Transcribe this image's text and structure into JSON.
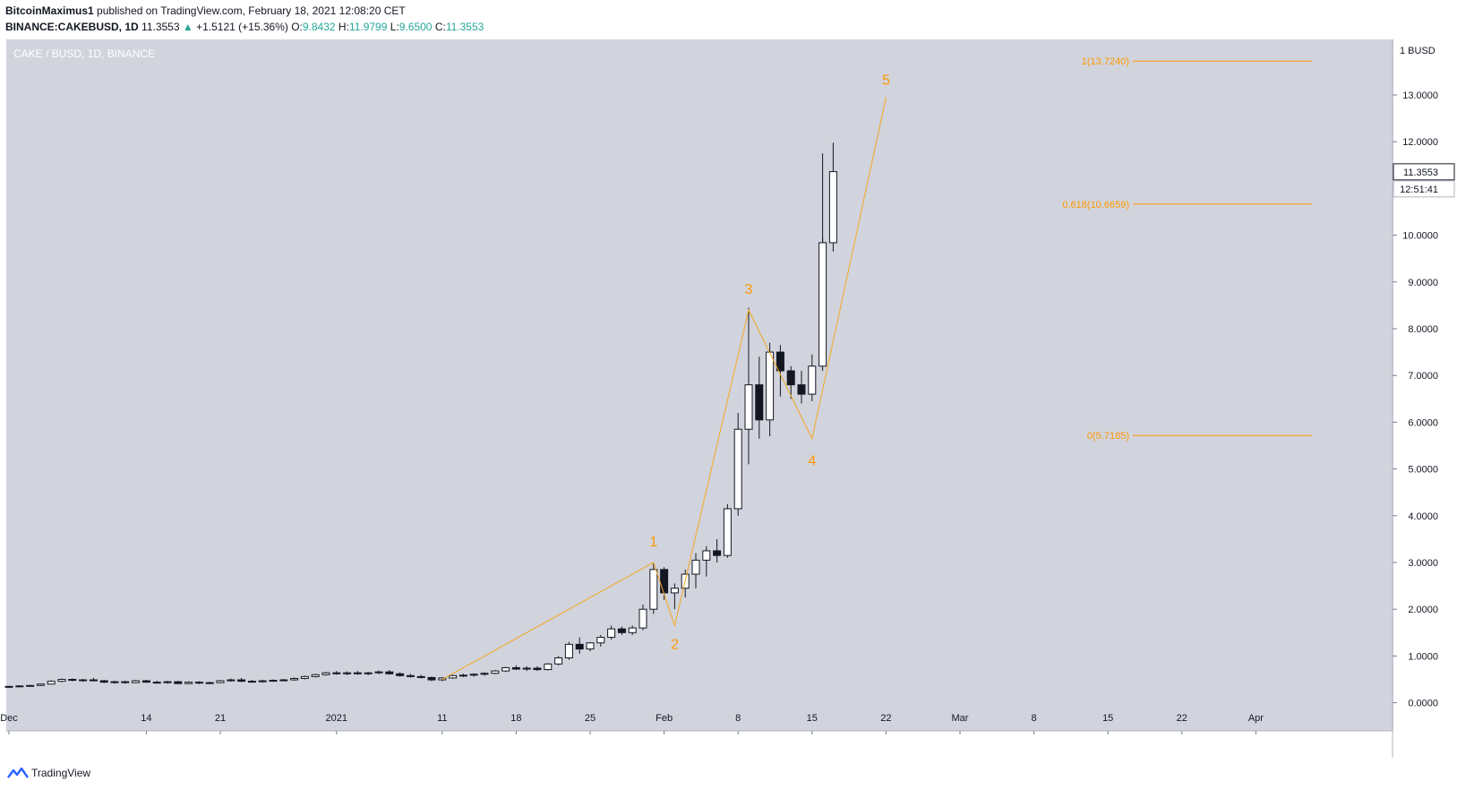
{
  "header": {
    "author": "BitcoinMaximus1",
    "published_text": "published on TradingView.com, February 18, 2021 12:08:20 CET",
    "symbol": "BINANCE:CAKEBUSD, 1D",
    "last": "11.3553",
    "change": "+1.5121 (+15.36%)",
    "o_label": "O:",
    "o_value": "9.8432",
    "h_label": "H:",
    "h_value": "11.9799",
    "l_label": "L:",
    "l_value": "9.6500",
    "c_label": "C:",
    "c_value": "11.3553"
  },
  "chart_title": "CAKE / BUSD, 1D, BINANCE",
  "footer": {
    "brand": "TradingView"
  },
  "colors": {
    "plot_bg": "#d1d4dc",
    "fib": "#ff9800",
    "wave": "#f5a623",
    "candle_up": "#ffffff",
    "candle_down": "#131722"
  },
  "chart_data": {
    "type": "candlestick",
    "title": "CAKE / BUSD, 1D, BINANCE",
    "y_unit": "BUSD",
    "ylim": [
      0,
      14.5
    ],
    "y_ticks": [
      {
        "value": 0,
        "label": "0.0000"
      },
      {
        "value": 1,
        "label": "1.0000"
      },
      {
        "value": 2,
        "label": "2.0000"
      },
      {
        "value": 3,
        "label": "3.0000"
      },
      {
        "value": 4,
        "label": "4.0000"
      },
      {
        "value": 5,
        "label": "5.0000"
      },
      {
        "value": 6,
        "label": "6.0000"
      },
      {
        "value": 7,
        "label": "7.0000"
      },
      {
        "value": 8,
        "label": "8.0000"
      },
      {
        "value": 9,
        "label": "9.0000"
      },
      {
        "value": 10,
        "label": "10.0000"
      },
      {
        "value": 11,
        "label": "11.0000"
      },
      {
        "value": 12,
        "label": "12.0000"
      },
      {
        "value": 13,
        "label": "13.0000"
      }
    ],
    "axis_top_label": "1 BUSD",
    "last_price_label": "11.3553",
    "countdown_label": "12:51:41",
    "x_ticks": [
      {
        "day": 0,
        "label": "Dec"
      },
      {
        "day": 13,
        "label": "14"
      },
      {
        "day": 20,
        "label": "21"
      },
      {
        "day": 31,
        "label": "2021"
      },
      {
        "day": 41,
        "label": "11"
      },
      {
        "day": 48,
        "label": "18"
      },
      {
        "day": 55,
        "label": "25"
      },
      {
        "day": 62,
        "label": "Feb"
      },
      {
        "day": 69,
        "label": "8"
      },
      {
        "day": 76,
        "label": "15"
      },
      {
        "day": 83,
        "label": "22"
      },
      {
        "day": 90,
        "label": "Mar"
      },
      {
        "day": 97,
        "label": "8"
      },
      {
        "day": 104,
        "label": "15"
      },
      {
        "day": 111,
        "label": "22"
      },
      {
        "day": 118,
        "label": "Apr"
      }
    ],
    "candles": [
      [
        0,
        0.34,
        0.36,
        0.32,
        0.35
      ],
      [
        1,
        0.35,
        0.37,
        0.33,
        0.36
      ],
      [
        2,
        0.36,
        0.38,
        0.34,
        0.37
      ],
      [
        3,
        0.37,
        0.41,
        0.36,
        0.4
      ],
      [
        4,
        0.4,
        0.48,
        0.39,
        0.46
      ],
      [
        5,
        0.46,
        0.52,
        0.44,
        0.5
      ],
      [
        6,
        0.5,
        0.52,
        0.46,
        0.48
      ],
      [
        7,
        0.48,
        0.51,
        0.45,
        0.49
      ],
      [
        8,
        0.49,
        0.53,
        0.46,
        0.47
      ],
      [
        9,
        0.47,
        0.49,
        0.42,
        0.44
      ],
      [
        10,
        0.44,
        0.47,
        0.41,
        0.45
      ],
      [
        11,
        0.45,
        0.47,
        0.41,
        0.43
      ],
      [
        12,
        0.43,
        0.49,
        0.42,
        0.47
      ],
      [
        13,
        0.47,
        0.49,
        0.43,
        0.44
      ],
      [
        14,
        0.44,
        0.47,
        0.41,
        0.43
      ],
      [
        15,
        0.43,
        0.47,
        0.41,
        0.45
      ],
      [
        16,
        0.45,
        0.47,
        0.4,
        0.41
      ],
      [
        17,
        0.41,
        0.46,
        0.4,
        0.44
      ],
      [
        18,
        0.44,
        0.46,
        0.4,
        0.42
      ],
      [
        19,
        0.42,
        0.45,
        0.4,
        0.43
      ],
      [
        20,
        0.43,
        0.49,
        0.42,
        0.47
      ],
      [
        21,
        0.47,
        0.52,
        0.45,
        0.49
      ],
      [
        22,
        0.49,
        0.53,
        0.44,
        0.46
      ],
      [
        23,
        0.46,
        0.49,
        0.43,
        0.45
      ],
      [
        24,
        0.45,
        0.49,
        0.43,
        0.47
      ],
      [
        25,
        0.47,
        0.5,
        0.45,
        0.48
      ],
      [
        26,
        0.48,
        0.51,
        0.46,
        0.49
      ],
      [
        27,
        0.49,
        0.54,
        0.47,
        0.52
      ],
      [
        28,
        0.52,
        0.58,
        0.5,
        0.56
      ],
      [
        29,
        0.56,
        0.62,
        0.54,
        0.6
      ],
      [
        30,
        0.6,
        0.66,
        0.58,
        0.64
      ],
      [
        31,
        0.64,
        0.68,
        0.6,
        0.62
      ],
      [
        32,
        0.62,
        0.67,
        0.59,
        0.64
      ],
      [
        33,
        0.64,
        0.68,
        0.6,
        0.62
      ],
      [
        34,
        0.62,
        0.66,
        0.59,
        0.64
      ],
      [
        35,
        0.64,
        0.69,
        0.61,
        0.66
      ],
      [
        36,
        0.66,
        0.7,
        0.6,
        0.62
      ],
      [
        37,
        0.62,
        0.65,
        0.56,
        0.58
      ],
      [
        38,
        0.58,
        0.62,
        0.54,
        0.56
      ],
      [
        39,
        0.56,
        0.6,
        0.52,
        0.54
      ],
      [
        40,
        0.54,
        0.56,
        0.46,
        0.49
      ],
      [
        41,
        0.49,
        0.55,
        0.46,
        0.53
      ],
      [
        42,
        0.53,
        0.6,
        0.51,
        0.58
      ],
      [
        43,
        0.58,
        0.62,
        0.55,
        0.59
      ],
      [
        44,
        0.59,
        0.63,
        0.56,
        0.61
      ],
      [
        45,
        0.61,
        0.65,
        0.58,
        0.63
      ],
      [
        46,
        0.63,
        0.7,
        0.61,
        0.68
      ],
      [
        47,
        0.68,
        0.77,
        0.66,
        0.75
      ],
      [
        48,
        0.75,
        0.8,
        0.7,
        0.72
      ],
      [
        49,
        0.72,
        0.78,
        0.68,
        0.74
      ],
      [
        50,
        0.74,
        0.78,
        0.68,
        0.71
      ],
      [
        51,
        0.71,
        0.85,
        0.69,
        0.83
      ],
      [
        52,
        0.83,
        1.0,
        0.8,
        0.96
      ],
      [
        53,
        0.96,
        1.3,
        0.92,
        1.25
      ],
      [
        54,
        1.25,
        1.4,
        1.05,
        1.15
      ],
      [
        55,
        1.15,
        1.3,
        1.1,
        1.28
      ],
      [
        56,
        1.28,
        1.45,
        1.2,
        1.4
      ],
      [
        57,
        1.4,
        1.65,
        1.35,
        1.58
      ],
      [
        58,
        1.58,
        1.63,
        1.45,
        1.5
      ],
      [
        59,
        1.5,
        1.65,
        1.45,
        1.6
      ],
      [
        60,
        1.6,
        2.1,
        1.55,
        2.0
      ],
      [
        61,
        2.0,
        3.0,
        1.9,
        2.85
      ],
      [
        62,
        2.85,
        2.9,
        2.2,
        2.35
      ],
      [
        63,
        2.35,
        2.55,
        2.0,
        2.45
      ],
      [
        64,
        2.45,
        2.85,
        2.25,
        2.75
      ],
      [
        65,
        2.75,
        3.2,
        2.45,
        3.05
      ],
      [
        66,
        3.05,
        3.35,
        2.7,
        3.25
      ],
      [
        67,
        3.25,
        3.5,
        3.0,
        3.15
      ],
      [
        68,
        3.15,
        4.25,
        3.1,
        4.15
      ],
      [
        69,
        4.15,
        6.2,
        4.0,
        5.85
      ],
      [
        70,
        5.85,
        8.45,
        5.1,
        6.8
      ],
      [
        71,
        6.8,
        7.4,
        5.65,
        6.05
      ],
      [
        72,
        6.05,
        7.7,
        5.7,
        7.5
      ],
      [
        73,
        7.5,
        7.65,
        6.55,
        7.1
      ],
      [
        74,
        7.1,
        7.2,
        6.5,
        6.8
      ],
      [
        75,
        6.8,
        7.1,
        6.4,
        6.6
      ],
      [
        76,
        6.6,
        7.45,
        6.45,
        7.2
      ],
      [
        77,
        7.2,
        9.95,
        7.1,
        9.84
      ],
      [
        78,
        9.84,
        11.98,
        9.65,
        11.36
      ]
    ],
    "overlay_extra_wicks": [
      [
        77,
        11.75
      ]
    ],
    "elliott_wave": {
      "points": [
        [
          41,
          0.5
        ],
        [
          61,
          3.0
        ],
        [
          63,
          1.65
        ],
        [
          70,
          8.4
        ],
        [
          76,
          5.65
        ],
        [
          83,
          12.95
        ]
      ],
      "labels": [
        {
          "text": "1",
          "day": 61,
          "price": 3.0
        },
        {
          "text": "2",
          "day": 63,
          "price": 1.65
        },
        {
          "text": "3",
          "day": 70,
          "price": 8.4
        },
        {
          "text": "4",
          "day": 76,
          "price": 5.65
        },
        {
          "text": "5",
          "day": 83,
          "price": 12.95
        }
      ]
    },
    "fib_levels": [
      {
        "value": 13.724,
        "label": "1(13.7240)"
      },
      {
        "value": 10.6659,
        "label": "0.618(10.6659)"
      },
      {
        "value": 5.7185,
        "label": "0(5.7185)"
      }
    ]
  }
}
